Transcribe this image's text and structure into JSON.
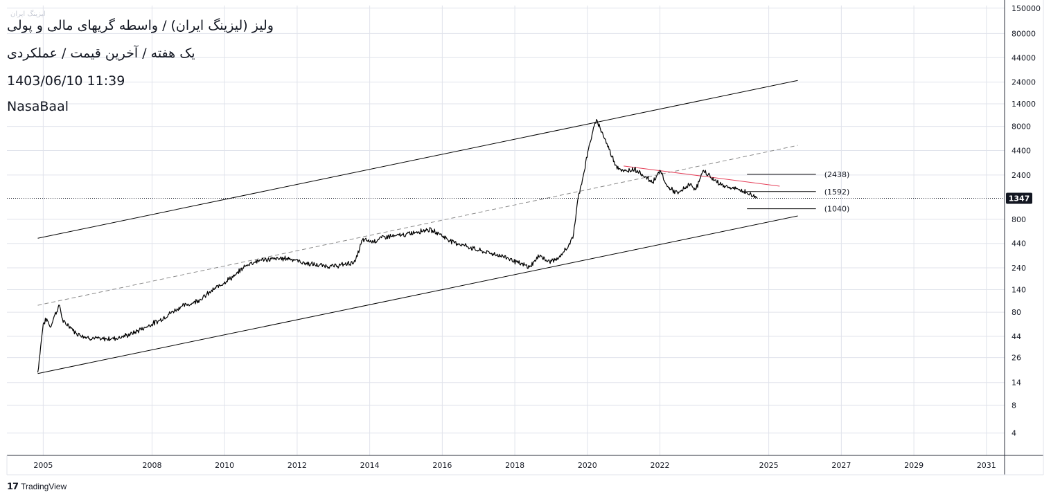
{
  "header": {
    "title": "ولیز (لیزینگ ایران) / واسطه گریهای مالی و پولی",
    "subtitle": "یک هفته / آخرین قیمت / عملکردی",
    "datetime": "1403/06/10 11:39",
    "author": "NasaBaal",
    "watermark": "لیزینگ ایران"
  },
  "branding": {
    "logo_text": "TradingView"
  },
  "chart_data": {
    "type": "line",
    "title": "ولیز (لیزینگ ایران) / واسطه گریهای مالی و پولی",
    "xlabel": "",
    "ylabel": "",
    "scale": "log",
    "grid": true,
    "xlim": [
      2004.0,
      2031.5
    ],
    "ylim": [
      2.3,
      160000
    ],
    "x_ticks": [
      "2005",
      "2008",
      "2010",
      "2012",
      "2014",
      "2016",
      "2018",
      "2020",
      "2022",
      "2025",
      "2027",
      "2029",
      "2031"
    ],
    "y_ticks": [
      "4",
      "8",
      "14",
      "26",
      "44",
      "80",
      "140",
      "240",
      "440",
      "800",
      "1347",
      "2400",
      "4400",
      "8000",
      "14000",
      "24000",
      "44000",
      "80000",
      "150000"
    ],
    "last_price": 1347,
    "series": [
      {
        "values": [
          [
            2004.85,
            18
          ],
          [
            2004.95,
            40
          ],
          [
            2005.0,
            60
          ],
          [
            2005.1,
            68
          ],
          [
            2005.2,
            55
          ],
          [
            2005.3,
            72
          ],
          [
            2005.45,
            95
          ],
          [
            2005.55,
            62
          ],
          [
            2005.7,
            58
          ],
          [
            2005.9,
            48
          ],
          [
            2006.2,
            43
          ],
          [
            2006.6,
            41
          ],
          [
            2007.0,
            42
          ],
          [
            2007.4,
            46
          ],
          [
            2007.8,
            55
          ],
          [
            2008.2,
            65
          ],
          [
            2008.5,
            78
          ],
          [
            2008.8,
            92
          ],
          [
            2009.1,
            100
          ],
          [
            2009.4,
            115
          ],
          [
            2009.7,
            140
          ],
          [
            2010.0,
            170
          ],
          [
            2010.3,
            200
          ],
          [
            2010.5,
            240
          ],
          [
            2010.7,
            270
          ],
          [
            2011.0,
            290
          ],
          [
            2011.4,
            300
          ],
          [
            2011.8,
            305
          ],
          [
            2012.2,
            270
          ],
          [
            2012.6,
            255
          ],
          [
            2013.0,
            250
          ],
          [
            2013.3,
            260
          ],
          [
            2013.6,
            280
          ],
          [
            2013.8,
            480
          ],
          [
            2014.1,
            460
          ],
          [
            2014.4,
            520
          ],
          [
            2014.7,
            530
          ],
          [
            2015.0,
            550
          ],
          [
            2015.3,
            590
          ],
          [
            2015.6,
            620
          ],
          [
            2015.9,
            570
          ],
          [
            2016.2,
            470
          ],
          [
            2016.6,
            420
          ],
          [
            2017.0,
            370
          ],
          [
            2017.4,
            340
          ],
          [
            2017.8,
            310
          ],
          [
            2018.1,
            270
          ],
          [
            2018.4,
            245
          ],
          [
            2018.7,
            330
          ],
          [
            2018.9,
            280
          ],
          [
            2019.2,
            300
          ],
          [
            2019.4,
            380
          ],
          [
            2019.6,
            500
          ],
          [
            2019.75,
            1400
          ],
          [
            2019.9,
            2500
          ],
          [
            2020.05,
            5000
          ],
          [
            2020.25,
            9500
          ],
          [
            2020.4,
            7000
          ],
          [
            2020.6,
            4500
          ],
          [
            2020.8,
            3000
          ],
          [
            2021.0,
            2600
          ],
          [
            2021.3,
            2800
          ],
          [
            2021.6,
            2300
          ],
          [
            2021.8,
            2000
          ],
          [
            2022.0,
            2700
          ],
          [
            2022.2,
            1800
          ],
          [
            2022.5,
            1500
          ],
          [
            2022.8,
            1900
          ],
          [
            2023.0,
            1700
          ],
          [
            2023.2,
            2700
          ],
          [
            2023.5,
            2100
          ],
          [
            2023.8,
            1800
          ],
          [
            2024.1,
            1700
          ],
          [
            2024.4,
            1550
          ],
          [
            2024.68,
            1347
          ]
        ]
      }
    ],
    "annotations": {
      "upper_channel": [
        [
          2004.85,
          500
        ],
        [
          2025.8,
          25000
        ]
      ],
      "mid_channel": [
        [
          2004.85,
          95
        ],
        [
          2025.8,
          5000
        ]
      ],
      "lower_channel": [
        [
          2004.85,
          17.5
        ],
        [
          2025.8,
          870
        ]
      ],
      "downtrend": [
        [
          2021.0,
          3000
        ],
        [
          2025.3,
          1820
        ]
      ],
      "levels": [
        {
          "value": 2438,
          "label": "(2438)"
        },
        {
          "value": 1592,
          "label": "(1592)"
        },
        {
          "value": 1040,
          "label": "(1040)"
        }
      ]
    },
    "colors": {
      "price": "#000000",
      "trendline": "#e53e57",
      "grid": "#e0e3eb",
      "last_price_bg": "#131722"
    }
  }
}
